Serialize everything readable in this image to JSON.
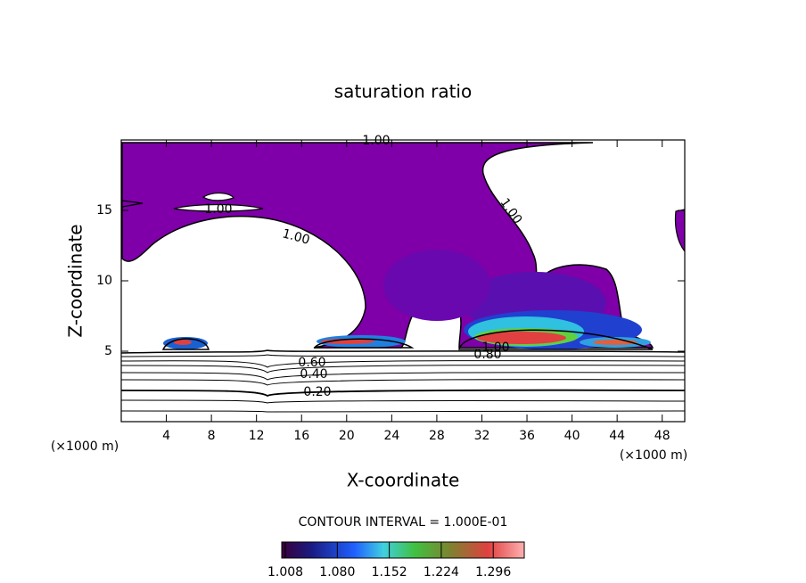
{
  "chart_data": {
    "type": "contour",
    "title": "saturation ratio",
    "x_label": "X-coordinate",
    "y_label": "Z-coordinate",
    "x_unit": "(×1000 m)",
    "y_unit": "(×1000 m)",
    "xlim": [
      0,
      50
    ],
    "ylim": [
      0,
      20
    ],
    "xticks": [
      4,
      8,
      12,
      16,
      20,
      24,
      28,
      32,
      36,
      40,
      44,
      48
    ],
    "yticks": [
      5,
      10,
      15
    ],
    "contour_labels": [
      "1.00",
      "1.00",
      "1.00",
      "1.00",
      "1.00",
      "0.80",
      "0.60",
      "0.40",
      "0.20"
    ],
    "contour_interval": "CONTOUR INTERVAL = 1.000E-01",
    "colorbar": {
      "clim": [
        1.003,
        1.339
      ],
      "ticks": [
        1.008,
        {
          "value": 1.08,
          "label": "1.080"
        },
        1.152,
        1.224,
        1.296
      ]
    }
  }
}
